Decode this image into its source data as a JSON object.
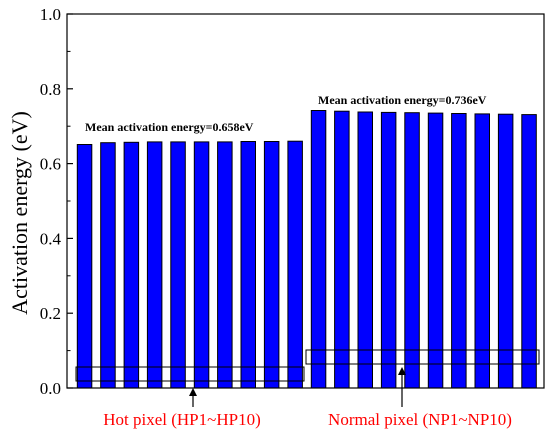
{
  "chart_data": {
    "type": "bar",
    "ylabel": "Activation energy (eV)",
    "ylim": [
      0.0,
      1.0
    ],
    "yticks": [
      "0.0",
      "0.2",
      "0.4",
      "0.6",
      "0.8",
      "1.0"
    ],
    "grid": false,
    "bar_color": "#0000ff",
    "series": [
      {
        "values": [
          0.651,
          0.656,
          0.657,
          0.658,
          0.658,
          0.658,
          0.658,
          0.659,
          0.659,
          0.66
        ]
      },
      {
        "values": [
          0.742,
          0.74,
          0.738,
          0.737,
          0.736,
          0.735,
          0.734,
          0.733,
          0.732,
          0.731
        ]
      }
    ],
    "annotations": {
      "hot_mean": "Mean activation energy=0.658eV",
      "normal_mean": "Mean activation energy=0.736eV",
      "hot_label": "Hot pixel (HP1~HP10)",
      "normal_label": "Normal pixel (NP1~NP10)"
    },
    "group_label_color": "#ff0000"
  }
}
